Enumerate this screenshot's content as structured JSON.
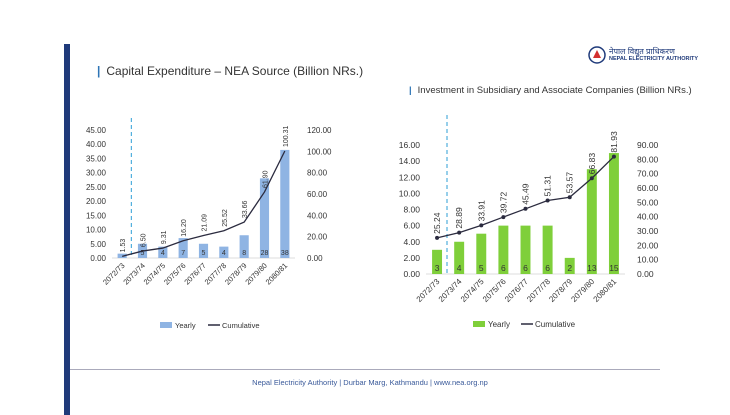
{
  "logo": {
    "text_native": "नेपाल विद्युत प्राधिकरण",
    "text_en": "NEPAL ELECTRICITY AUTHORITY"
  },
  "footer": {
    "text": "Nepal Electricity Authority | Durbar Marg, Kathmandu | www.nea.org.np"
  },
  "colors": {
    "sidebar": "#1f3a7a",
    "bar_left": "#8fb4e3",
    "bar_right": "#7fcf3a",
    "line": "#2b2b3f",
    "dashed": "#2e9fd6",
    "accent": "#2e75b6"
  },
  "chart_data": [
    {
      "type": "bar",
      "title": "Capital Expenditure – NEA Source (Billion NRs.)",
      "categories": [
        "2072/73",
        "2073/74",
        "2074/75",
        "2075/76",
        "2076/77",
        "2077/78",
        "2078/79",
        "2079/80",
        "2080/81"
      ],
      "series": [
        {
          "name": "Yearly",
          "type": "bar",
          "axis": "left",
          "values": [
            1.53,
            5,
            4,
            7,
            5,
            4,
            8,
            28,
            38
          ],
          "labels": [
            "",
            "5",
            "4",
            "7",
            "5",
            "4",
            "8",
            "28",
            "38"
          ]
        },
        {
          "name": "Cumulative",
          "type": "line",
          "axis": "right",
          "values": [
            1.53,
            6.5,
            9.31,
            16.2,
            21.09,
            25.52,
            33.66,
            61.9,
            100.31
          ],
          "labels": [
            "1.53",
            "6.50",
            "9.31",
            "16.20",
            "21.09",
            "25.52",
            "33.66",
            "61.90",
            "100.31"
          ]
        }
      ],
      "yticks_left": [
        "0.00",
        "5.00",
        "10.00",
        "15.00",
        "20.00",
        "25.00",
        "30.00",
        "35.00",
        "40.00",
        "45.00"
      ],
      "ylim_left": [
        0,
        45
      ],
      "yticks_right": [
        "0.00",
        "20.00",
        "40.00",
        "60.00",
        "80.00",
        "100.00",
        "120.00"
      ],
      "ylim_right": [
        0,
        120
      ],
      "legend": "bottom"
    },
    {
      "type": "bar",
      "title": "Investment in Subsidiary and Associate Companies (Billion NRs.)",
      "categories": [
        "2072/73",
        "2073/74",
        "2074/75",
        "2075/76",
        "2076/77",
        "2077/78",
        "2078/79",
        "2079/80",
        "2080/81"
      ],
      "series": [
        {
          "name": "Yearly",
          "type": "bar",
          "axis": "left",
          "values": [
            3,
            4,
            5,
            6,
            6,
            6,
            2,
            13,
            15
          ],
          "labels": [
            "3",
            "4",
            "5",
            "6",
            "6",
            "6",
            "2",
            "13",
            "15"
          ]
        },
        {
          "name": "Cumulative",
          "type": "line",
          "axis": "right",
          "values": [
            25.24,
            28.89,
            33.91,
            39.72,
            45.49,
            51.31,
            53.57,
            66.83,
            81.93
          ],
          "labels": [
            "25.24",
            "28.89",
            "33.91",
            "39.72",
            "45.49",
            "51.31",
            "53.57",
            "66.83",
            "81.93"
          ]
        }
      ],
      "yticks_left": [
        "0.00",
        "2.00",
        "4.00",
        "6.00",
        "8.00",
        "10.00",
        "12.00",
        "14.00",
        "16.00"
      ],
      "ylim_left": [
        0,
        16
      ],
      "yticks_right": [
        "0.00",
        "10.00",
        "20.00",
        "30.00",
        "40.00",
        "50.00",
        "60.00",
        "70.00",
        "80.00",
        "90.00"
      ],
      "ylim_right": [
        0,
        90
      ],
      "legend": "bottom"
    }
  ]
}
